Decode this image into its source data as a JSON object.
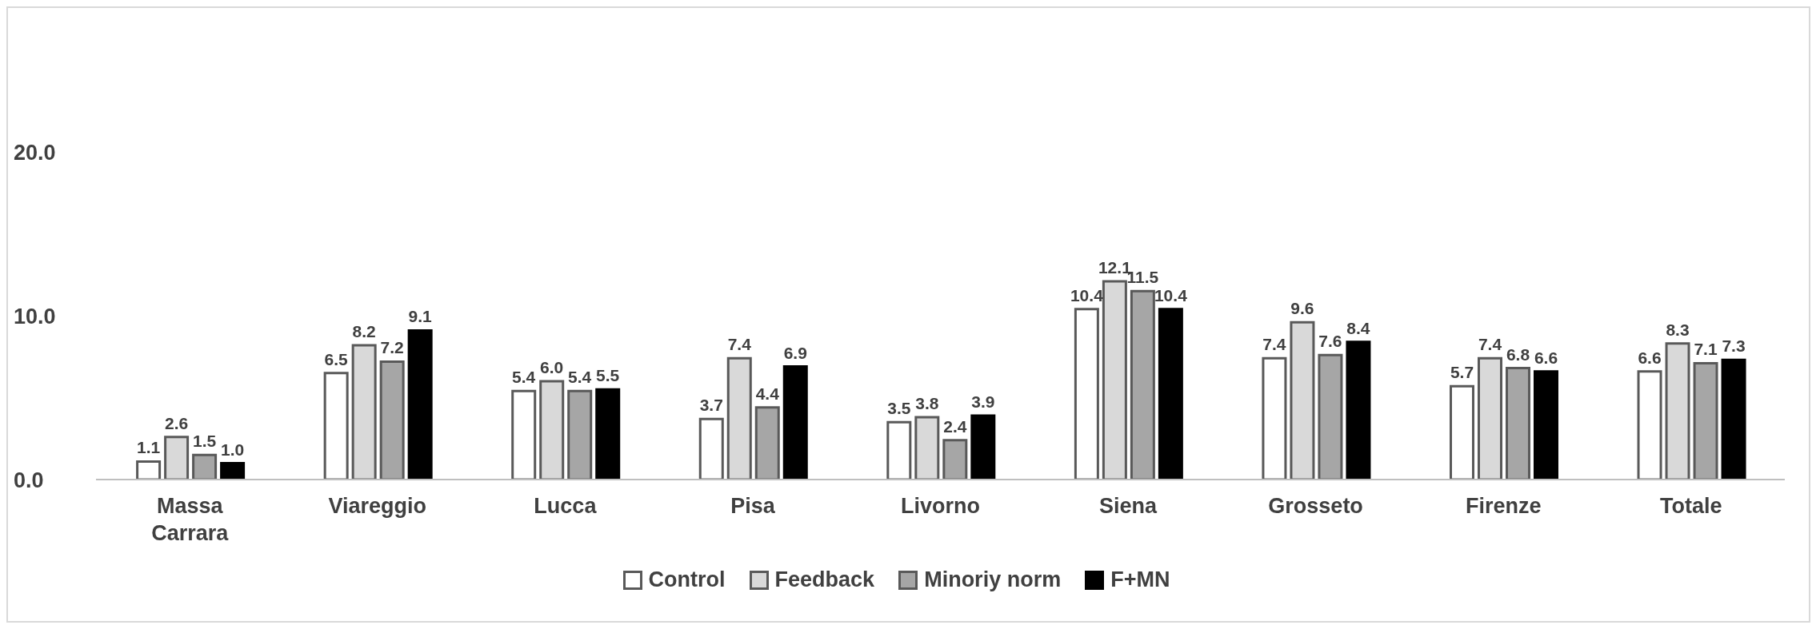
{
  "chart_data": {
    "type": "bar",
    "categories": [
      "Massa Carrara",
      "Viareggio",
      "Lucca",
      "Pisa",
      "Livorno",
      "Siena",
      "Grosseto",
      "Firenze",
      "Totale"
    ],
    "series": [
      {
        "name": "Control",
        "color": "#ffffff",
        "values": [
          1.1,
          6.5,
          5.4,
          3.7,
          3.5,
          10.4,
          7.4,
          5.7,
          6.6
        ],
        "value_labels": [
          "1.1",
          "6.5",
          "5.4",
          "3.7",
          "3.5",
          "10.4",
          "7.4",
          "5.7",
          "6.6"
        ]
      },
      {
        "name": "Feedback",
        "color": "#d9d9d9",
        "values": [
          2.6,
          8.2,
          6.0,
          7.4,
          3.8,
          12.1,
          9.6,
          7.4,
          8.3
        ],
        "value_labels": [
          "2.6",
          "8.2",
          "6.0",
          "7.4",
          "3.8",
          "12.1",
          "9.6",
          "7.4",
          "8.3"
        ]
      },
      {
        "name": "Minoriy norm",
        "color": "#a6a6a6",
        "values": [
          1.5,
          7.2,
          5.4,
          4.4,
          2.4,
          11.5,
          7.6,
          6.8,
          7.1
        ],
        "value_labels": [
          "1.5",
          "7.2",
          "5.4",
          "4.4",
          "2.4",
          "11.5",
          "7.6",
          "6.8",
          "7.1"
        ]
      },
      {
        "name": "F+MN",
        "color": "#000000",
        "values": [
          1.0,
          9.1,
          5.5,
          6.9,
          3.9,
          10.4,
          8.4,
          6.6,
          7.3
        ],
        "value_labels": [
          "1.0",
          "9.1",
          "5.5",
          "6.9",
          "3.9",
          "10.4",
          "8.4",
          "6.6",
          "7.3"
        ]
      }
    ],
    "ylim": [
      0,
      20
    ],
    "yticks": [
      {
        "value": 0,
        "label": "0.0"
      },
      {
        "value": 10,
        "label": "10.0"
      },
      {
        "value": 20,
        "label": "20.0"
      }
    ],
    "grid": false,
    "legend": "bottom"
  }
}
